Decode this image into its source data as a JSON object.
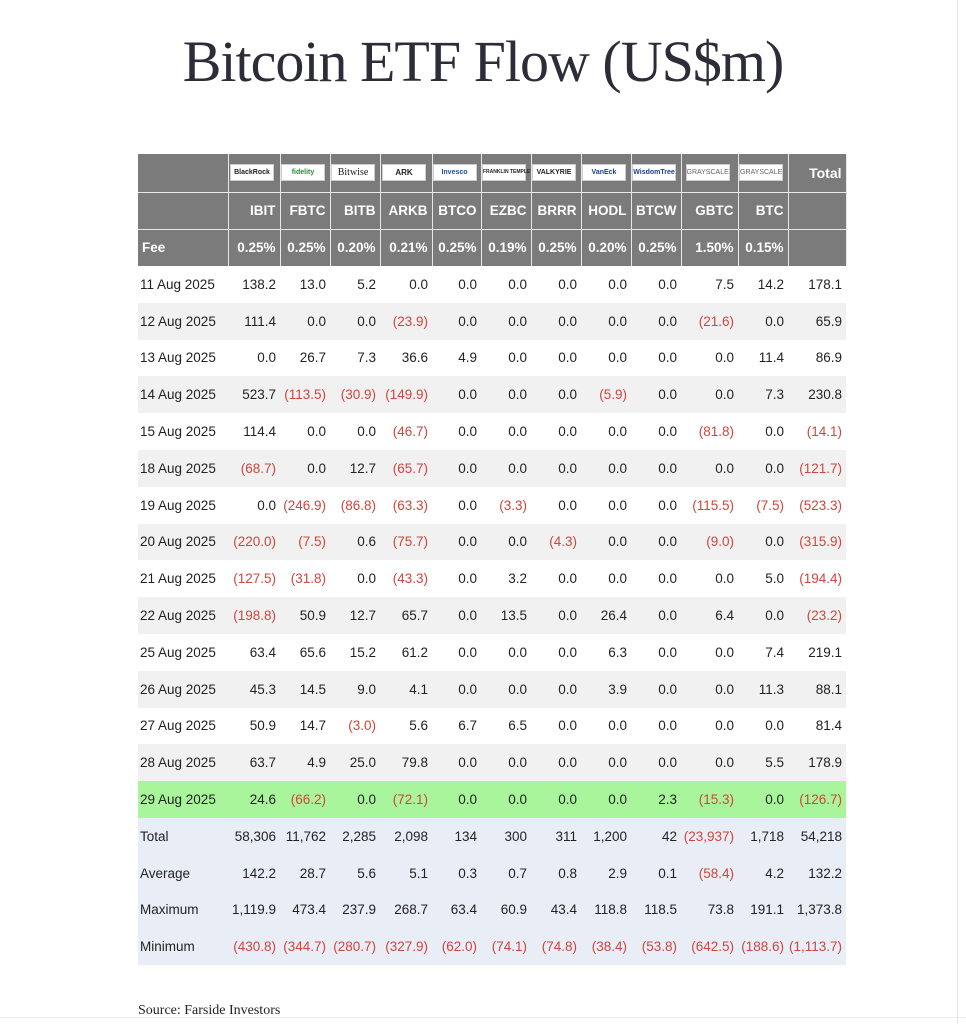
{
  "title": "Bitcoin ETF Flow (US$m)",
  "source": "Source: Farside Investors",
  "issuers": [
    "BlackRock",
    "fidelity",
    "Bitwise",
    "ARK",
    "Invesco",
    "FRANKLIN TEMPLETON",
    "VALKYRIE",
    "VanEck",
    "WisdomTree",
    "GRAYSCALE",
    "GRAYSCALE"
  ],
  "total_label": "Total",
  "tickers": [
    "IBIT",
    "FBTC",
    "BITB",
    "ARKB",
    "BTCO",
    "EZBC",
    "BRRR",
    "HODL",
    "BTCW",
    "GBTC",
    "BTC"
  ],
  "fee_label": "Fee",
  "fees": [
    "0.25%",
    "0.25%",
    "0.20%",
    "0.21%",
    "0.25%",
    "0.19%",
    "0.25%",
    "0.20%",
    "0.25%",
    "1.50%",
    "0.15%"
  ],
  "rows": [
    {
      "date": "11 Aug 2025",
      "vals": [
        "138.2",
        "13.0",
        "5.2",
        "0.0",
        "0.0",
        "0.0",
        "0.0",
        "0.0",
        "0.0",
        "7.5",
        "14.2",
        "178.1"
      ]
    },
    {
      "date": "12 Aug 2025",
      "vals": [
        "111.4",
        "0.0",
        "0.0",
        "(23.9)",
        "0.0",
        "0.0",
        "0.0",
        "0.0",
        "0.0",
        "(21.6)",
        "0.0",
        "65.9"
      ]
    },
    {
      "date": "13 Aug 2025",
      "vals": [
        "0.0",
        "26.7",
        "7.3",
        "36.6",
        "4.9",
        "0.0",
        "0.0",
        "0.0",
        "0.0",
        "0.0",
        "11.4",
        "86.9"
      ]
    },
    {
      "date": "14 Aug 2025",
      "vals": [
        "523.7",
        "(113.5)",
        "(30.9)",
        "(149.9)",
        "0.0",
        "0.0",
        "0.0",
        "(5.9)",
        "0.0",
        "0.0",
        "7.3",
        "230.8"
      ]
    },
    {
      "date": "15 Aug 2025",
      "vals": [
        "114.4",
        "0.0",
        "0.0",
        "(46.7)",
        "0.0",
        "0.0",
        "0.0",
        "0.0",
        "0.0",
        "(81.8)",
        "0.0",
        "(14.1)"
      ]
    },
    {
      "date": "18 Aug 2025",
      "vals": [
        "(68.7)",
        "0.0",
        "12.7",
        "(65.7)",
        "0.0",
        "0.0",
        "0.0",
        "0.0",
        "0.0",
        "0.0",
        "0.0",
        "(121.7)"
      ]
    },
    {
      "date": "19 Aug 2025",
      "vals": [
        "0.0",
        "(246.9)",
        "(86.8)",
        "(63.3)",
        "0.0",
        "(3.3)",
        "0.0",
        "0.0",
        "0.0",
        "(115.5)",
        "(7.5)",
        "(523.3)"
      ]
    },
    {
      "date": "20 Aug 2025",
      "vals": [
        "(220.0)",
        "(7.5)",
        "0.6",
        "(75.7)",
        "0.0",
        "0.0",
        "(4.3)",
        "0.0",
        "0.0",
        "(9.0)",
        "0.0",
        "(315.9)"
      ]
    },
    {
      "date": "21 Aug 2025",
      "vals": [
        "(127.5)",
        "(31.8)",
        "0.0",
        "(43.3)",
        "0.0",
        "3.2",
        "0.0",
        "0.0",
        "0.0",
        "0.0",
        "5.0",
        "(194.4)"
      ]
    },
    {
      "date": "22 Aug 2025",
      "vals": [
        "(198.8)",
        "50.9",
        "12.7",
        "65.7",
        "0.0",
        "13.5",
        "0.0",
        "26.4",
        "0.0",
        "6.4",
        "0.0",
        "(23.2)"
      ]
    },
    {
      "date": "25 Aug 2025",
      "vals": [
        "63.4",
        "65.6",
        "15.2",
        "61.2",
        "0.0",
        "0.0",
        "0.0",
        "6.3",
        "0.0",
        "0.0",
        "7.4",
        "219.1"
      ]
    },
    {
      "date": "26 Aug 2025",
      "vals": [
        "45.3",
        "14.5",
        "9.0",
        "4.1",
        "0.0",
        "0.0",
        "0.0",
        "3.9",
        "0.0",
        "0.0",
        "11.3",
        "88.1"
      ]
    },
    {
      "date": "27 Aug 2025",
      "vals": [
        "50.9",
        "14.7",
        "(3.0)",
        "5.6",
        "6.7",
        "6.5",
        "0.0",
        "0.0",
        "0.0",
        "0.0",
        "0.0",
        "81.4"
      ]
    },
    {
      "date": "28 Aug 2025",
      "vals": [
        "63.7",
        "4.9",
        "25.0",
        "79.8",
        "0.0",
        "0.0",
        "0.0",
        "0.0",
        "0.0",
        "0.0",
        "5.5",
        "178.9"
      ]
    },
    {
      "date": "29 Aug 2025",
      "highlight": true,
      "vals": [
        "24.6",
        "(66.2)",
        "0.0",
        "(72.1)",
        "0.0",
        "0.0",
        "0.0",
        "0.0",
        "2.3",
        "(15.3)",
        "0.0",
        "(126.7)"
      ]
    }
  ],
  "summary": [
    {
      "label": "Total",
      "vals": [
        "58,306",
        "11,762",
        "2,285",
        "2,098",
        "134",
        "300",
        "311",
        "1,200",
        "42",
        "(23,937)",
        "1,718",
        "54,218"
      ]
    },
    {
      "label": "Average",
      "vals": [
        "142.2",
        "28.7",
        "5.6",
        "5.1",
        "0.3",
        "0.7",
        "0.8",
        "2.9",
        "0.1",
        "(58.4)",
        "4.2",
        "132.2"
      ]
    },
    {
      "label": "Maximum",
      "vals": [
        "1,119.9",
        "473.4",
        "237.9",
        "268.7",
        "63.4",
        "60.9",
        "43.4",
        "118.8",
        "118.5",
        "73.8",
        "191.1",
        "1,373.8"
      ]
    },
    {
      "label": "Minimum",
      "vals": [
        "(430.8)",
        "(344.7)",
        "(280.7)",
        "(327.9)",
        "(62.0)",
        "(74.1)",
        "(74.8)",
        "(38.4)",
        "(53.8)",
        "(642.5)",
        "(188.6)",
        "(1,113.7)"
      ]
    }
  ],
  "colors": {
    "header_bg": "#7b7b7b",
    "negative": "#d0453d",
    "highlight": "#a9f59b",
    "summary_bg": "#e9edf6",
    "alt_row": "#f1f1f1"
  }
}
